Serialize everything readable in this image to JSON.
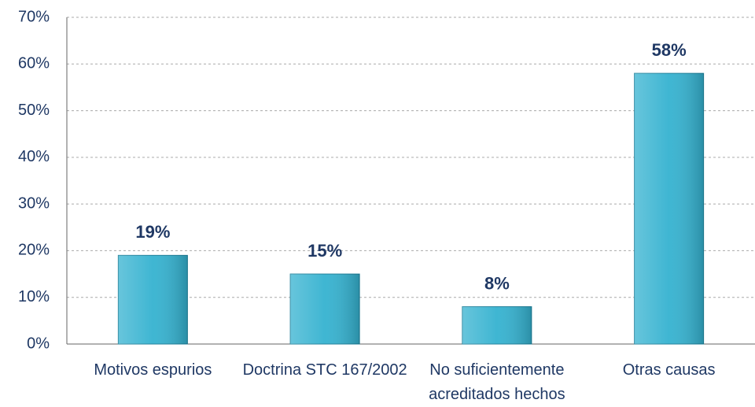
{
  "chart_data": {
    "type": "bar",
    "categories": [
      "Motivos espurios",
      "Doctrina STC 167/2002",
      "No suficientemente acreditados hechos",
      "Otras causas"
    ],
    "values": [
      19,
      15,
      8,
      58
    ],
    "value_labels": [
      "19%",
      "15%",
      "8%",
      "58%"
    ],
    "color": "#35b2d0",
    "ylim": [
      0,
      70
    ],
    "yticks": [
      {
        "value": 0,
        "label": "0%"
      },
      {
        "value": 10,
        "label": "10%"
      },
      {
        "value": 20,
        "label": "20%"
      },
      {
        "value": 30,
        "label": "30%"
      },
      {
        "value": 40,
        "label": "40%"
      },
      {
        "value": 50,
        "label": "50%"
      },
      {
        "value": 60,
        "label": "60%"
      },
      {
        "value": 70,
        "label": "70%"
      }
    ],
    "grid": true
  }
}
